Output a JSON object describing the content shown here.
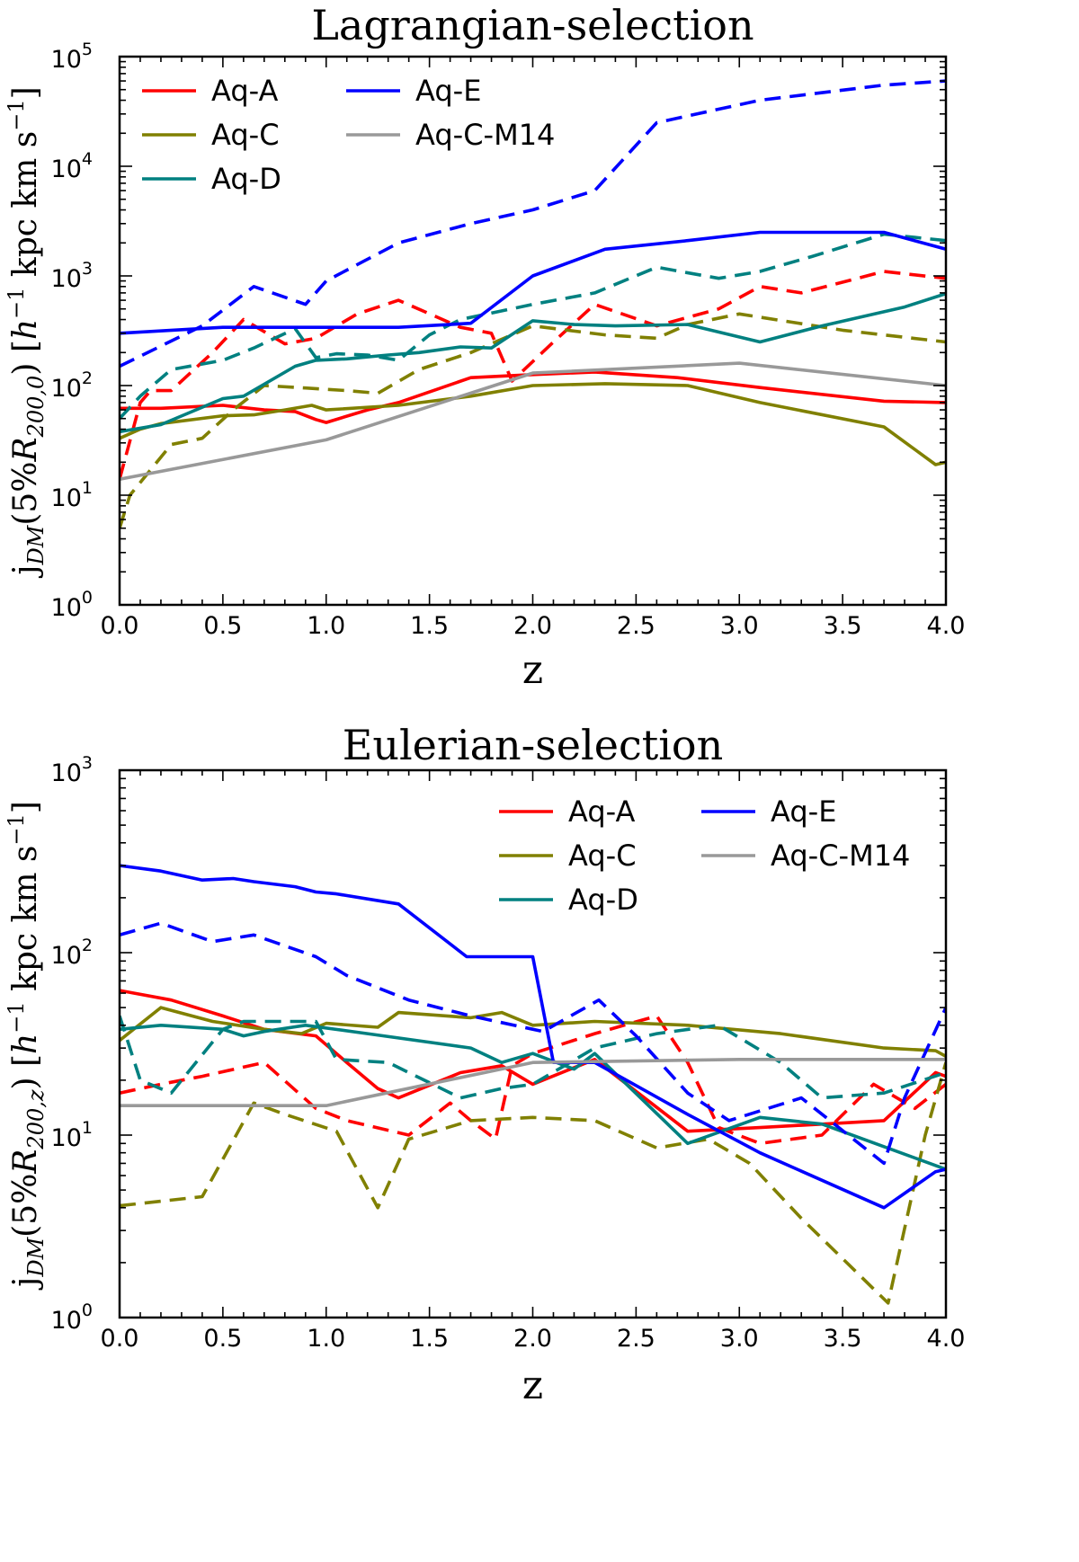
{
  "colors": {
    "Aq-A": "#ff0000",
    "Aq-C": "#808000",
    "Aq-D": "#008080",
    "Aq-E": "#0000ff",
    "Aq-C-M14": "#999999"
  },
  "chart_data": [
    {
      "type": "line",
      "title": "Lagrangian-selection",
      "xlabel": "z",
      "ylabel": "j_DM(5%R_200,0) [h^-1 kpc km s^-1]",
      "ylabel_parts": {
        "j": "j",
        "sub": "DM",
        "open": "(5%",
        "R": "R",
        "rsub": "200,0",
        "close": ")",
        "unit_open": "[",
        "h": "h",
        "hexp": "−1",
        "mid": " kpc km s",
        "sexp": "−1",
        "unit_close": "]"
      },
      "xlim": [
        0,
        4
      ],
      "ylim": [
        1,
        100000
      ],
      "yscale": "log",
      "x_ticks": [
        "0.0",
        "0.5",
        "1.0",
        "1.5",
        "2.0",
        "2.5",
        "3.0",
        "3.5",
        "4.0"
      ],
      "y_ticks": [
        {
          "base": "10",
          "exp": "0"
        },
        {
          "base": "10",
          "exp": "1"
        },
        {
          "base": "10",
          "exp": "2"
        },
        {
          "base": "10",
          "exp": "3"
        },
        {
          "base": "10",
          "exp": "4"
        },
        {
          "base": "10",
          "exp": "5"
        }
      ],
      "legend": {
        "position": "top-left",
        "columns": [
          [
            "Aq-A",
            "Aq-C",
            "Aq-D"
          ],
          [
            "Aq-E",
            "Aq-C-M14"
          ]
        ]
      },
      "series": [
        {
          "name": "Aq-A",
          "style": "solid",
          "x": [
            0,
            0.1,
            0.2,
            0.5,
            0.7,
            0.85,
            0.95,
            1.0,
            1.2,
            1.35,
            1.7,
            2.0,
            2.3,
            2.7,
            3.1,
            3.7,
            4.0
          ],
          "y": [
            62,
            62,
            62,
            66,
            60,
            58,
            49,
            46,
            60,
            70,
            118,
            126,
            133,
            118,
            96,
            72,
            70
          ]
        },
        {
          "name": "Aq-A",
          "style": "dashed",
          "x": [
            0,
            0.1,
            0.15,
            0.25,
            0.45,
            0.6,
            0.8,
            0.95,
            1.15,
            1.35,
            1.65,
            1.8,
            1.9,
            2.1,
            2.3,
            2.6,
            2.9,
            3.1,
            3.3,
            3.7,
            4.0
          ],
          "y": [
            14,
            70,
            90,
            90,
            200,
            400,
            240,
            270,
            450,
            600,
            340,
            300,
            110,
            250,
            550,
            350,
            500,
            800,
            700,
            1100,
            950
          ]
        },
        {
          "name": "Aq-C",
          "style": "solid",
          "x": [
            0,
            0.1,
            0.2,
            0.5,
            0.65,
            0.8,
            0.93,
            1.0,
            1.35,
            1.7,
            2.0,
            2.35,
            2.75,
            3.1,
            3.7,
            3.95,
            4.0
          ],
          "y": [
            33,
            40,
            45,
            53,
            54,
            60,
            66,
            60,
            66,
            80,
            100,
            104,
            100,
            70,
            42,
            19,
            20
          ]
        },
        {
          "name": "Aq-C",
          "style": "dashed",
          "x": [
            0,
            0.05,
            0.25,
            0.4,
            0.55,
            0.7,
            0.9,
            1.1,
            1.25,
            1.45,
            1.7,
            2.0,
            2.35,
            2.6,
            2.75,
            3.0,
            3.5,
            4.0
          ],
          "y": [
            5,
            10,
            29,
            33,
            60,
            100,
            95,
            90,
            85,
            140,
            200,
            350,
            290,
            270,
            360,
            450,
            320,
            250
          ]
        },
        {
          "name": "Aq-D",
          "style": "solid",
          "x": [
            0,
            0.2,
            0.5,
            0.6,
            0.85,
            0.95,
            1.1,
            1.3,
            1.45,
            1.65,
            1.8,
            2.0,
            2.2,
            2.4,
            2.75,
            3.1,
            3.4,
            3.8,
            4.0
          ],
          "y": [
            38,
            44,
            76,
            80,
            150,
            170,
            175,
            190,
            200,
            225,
            220,
            390,
            360,
            350,
            360,
            250,
            350,
            520,
            690
          ]
        },
        {
          "name": "Aq-D",
          "style": "dashed",
          "x": [
            0,
            0.1,
            0.25,
            0.5,
            0.65,
            0.85,
            0.95,
            1.05,
            1.2,
            1.35,
            1.5,
            1.65,
            2.0,
            2.3,
            2.6,
            2.9,
            3.1,
            3.35,
            3.7,
            4.0
          ],
          "y": [
            50,
            80,
            140,
            170,
            220,
            330,
            180,
            195,
            190,
            170,
            290,
            400,
            550,
            700,
            1200,
            950,
            1100,
            1500,
            2400,
            2100
          ]
        },
        {
          "name": "Aq-E",
          "style": "solid",
          "x": [
            0,
            0.5,
            1.0,
            1.35,
            1.7,
            2.0,
            2.35,
            2.75,
            3.1,
            3.7,
            4.0
          ],
          "y": [
            300,
            340,
            340,
            340,
            370,
            1000,
            1750,
            2100,
            2500,
            2500,
            1750
          ]
        },
        {
          "name": "Aq-E",
          "style": "dashed",
          "x": [
            0,
            0.4,
            0.65,
            0.9,
            1.0,
            1.35,
            1.7,
            2.0,
            2.3,
            2.6,
            3.1,
            3.7,
            4.0
          ],
          "y": [
            150,
            350,
            800,
            550,
            900,
            2000,
            3000,
            4000,
            6000,
            25000,
            40000,
            55000,
            60000
          ]
        },
        {
          "name": "Aq-C-M14",
          "style": "solid",
          "x": [
            0,
            1.0,
            2.0,
            3.0,
            4.0
          ],
          "y": [
            14,
            32,
            130,
            160,
            100
          ]
        }
      ]
    },
    {
      "type": "line",
      "title": "Eulerian-selection",
      "xlabel": "z",
      "ylabel": "j_DM(5%R_200,z) [h^-1 kpc km s^-1]",
      "ylabel_parts": {
        "j": "j",
        "sub": "DM",
        "open": "(5%",
        "R": "R",
        "rsub": "200,z",
        "close": ")",
        "unit_open": "[",
        "h": "h",
        "hexp": "−1",
        "mid": " kpc km s",
        "sexp": "−1",
        "unit_close": "]"
      },
      "xlim": [
        0,
        4
      ],
      "ylim": [
        1,
        1000
      ],
      "yscale": "log",
      "x_ticks": [
        "0.0",
        "0.5",
        "1.0",
        "1.5",
        "2.0",
        "2.5",
        "3.0",
        "3.5",
        "4.0"
      ],
      "y_ticks": [
        {
          "base": "10",
          "exp": "0"
        },
        {
          "base": "10",
          "exp": "1"
        },
        {
          "base": "10",
          "exp": "2"
        },
        {
          "base": "10",
          "exp": "3"
        }
      ],
      "legend": {
        "position": "top-right",
        "columns": [
          [
            "Aq-A",
            "Aq-C",
            "Aq-D"
          ],
          [
            "Aq-E",
            "Aq-C-M14"
          ]
        ]
      },
      "series": [
        {
          "name": "Aq-A",
          "style": "solid",
          "x": [
            0,
            0.25,
            0.5,
            0.7,
            0.95,
            1.1,
            1.25,
            1.35,
            1.65,
            1.85,
            2.0,
            2.3,
            2.75,
            3.1,
            3.7,
            3.95,
            4.0
          ],
          "y": [
            62,
            55,
            45,
            38,
            35,
            25,
            18,
            16,
            22,
            24,
            19,
            26,
            10.5,
            11,
            12,
            22,
            21
          ]
        },
        {
          "name": "Aq-A",
          "style": "dashed",
          "x": [
            0,
            0.2,
            0.4,
            0.7,
            0.95,
            1.1,
            1.4,
            1.6,
            1.7,
            1.82,
            1.9,
            2.0,
            2.3,
            2.6,
            2.75,
            2.9,
            3.1,
            3.4,
            3.65,
            3.85,
            4.0
          ],
          "y": [
            17,
            19,
            21,
            25,
            14,
            12,
            10,
            15,
            12,
            9.5,
            24,
            28,
            36,
            45,
            25,
            11,
            9,
            10,
            19,
            14,
            19
          ]
        },
        {
          "name": "Aq-C",
          "style": "solid",
          "x": [
            0,
            0.2,
            0.45,
            0.7,
            0.88,
            1.0,
            1.25,
            1.35,
            1.7,
            1.85,
            2.0,
            2.3,
            2.75,
            3.2,
            3.7,
            3.95,
            4.0
          ],
          "y": [
            33,
            50,
            42,
            38,
            36,
            41,
            39,
            47,
            44,
            47,
            40,
            42,
            40,
            36,
            30,
            29,
            27
          ]
        },
        {
          "name": "Aq-C",
          "style": "dashed",
          "x": [
            0,
            0.4,
            0.65,
            0.8,
            1.05,
            1.25,
            1.4,
            1.7,
            2.0,
            2.3,
            2.6,
            2.85,
            3.05,
            3.3,
            3.72,
            3.9,
            4.0
          ],
          "y": [
            4.1,
            4.6,
            15,
            13,
            10.5,
            4.0,
            9.5,
            12,
            12.5,
            12,
            8.5,
            9.5,
            7,
            3.5,
            1.2,
            10,
            25
          ]
        },
        {
          "name": "Aq-D",
          "style": "solid",
          "x": [
            0,
            0.2,
            0.5,
            0.6,
            0.7,
            0.9,
            1.2,
            1.7,
            1.85,
            2.0,
            2.2,
            2.3,
            2.75,
            3.1,
            3.4,
            4.0
          ],
          "y": [
            38,
            40,
            38,
            35,
            37,
            40,
            36,
            30,
            25,
            28,
            23,
            28,
            9,
            12.5,
            11.5,
            6.5
          ]
        },
        {
          "name": "Aq-D",
          "style": "dashed",
          "x": [
            0,
            0.1,
            0.25,
            0.5,
            0.6,
            0.95,
            1.05,
            1.3,
            1.65,
            1.85,
            2.0,
            2.3,
            2.6,
            2.9,
            3.2,
            3.4,
            3.7,
            4.0
          ],
          "y": [
            45,
            20,
            17,
            38,
            42,
            42,
            26,
            25,
            16,
            18,
            19,
            30,
            36,
            40,
            25,
            16,
            17,
            22
          ]
        },
        {
          "name": "Aq-E",
          "style": "solid",
          "x": [
            0,
            0.2,
            0.4,
            0.55,
            0.65,
            0.85,
            0.95,
            1.05,
            1.35,
            1.68,
            2.0,
            2.1,
            2.3,
            2.75,
            3.1,
            3.7,
            3.95,
            4.0
          ],
          "y": [
            300,
            280,
            250,
            255,
            245,
            230,
            215,
            210,
            185,
            95,
            95,
            25,
            25,
            13,
            8,
            4.0,
            6.3,
            6.5
          ]
        },
        {
          "name": "Aq-E",
          "style": "dashed",
          "x": [
            0,
            0.2,
            0.45,
            0.65,
            0.95,
            1.1,
            1.4,
            1.7,
            2.05,
            2.32,
            2.5,
            2.75,
            2.95,
            3.3,
            3.7,
            3.8,
            4.0
          ],
          "y": [
            125,
            145,
            115,
            125,
            95,
            75,
            55,
            45,
            37,
            55,
            35,
            17,
            12,
            16,
            7,
            16,
            50
          ]
        },
        {
          "name": "Aq-C-M14",
          "style": "solid",
          "x": [
            0,
            1.0,
            2.0,
            3.0,
            4.0
          ],
          "y": [
            14.5,
            14.5,
            25,
            26,
            26
          ]
        }
      ]
    }
  ]
}
